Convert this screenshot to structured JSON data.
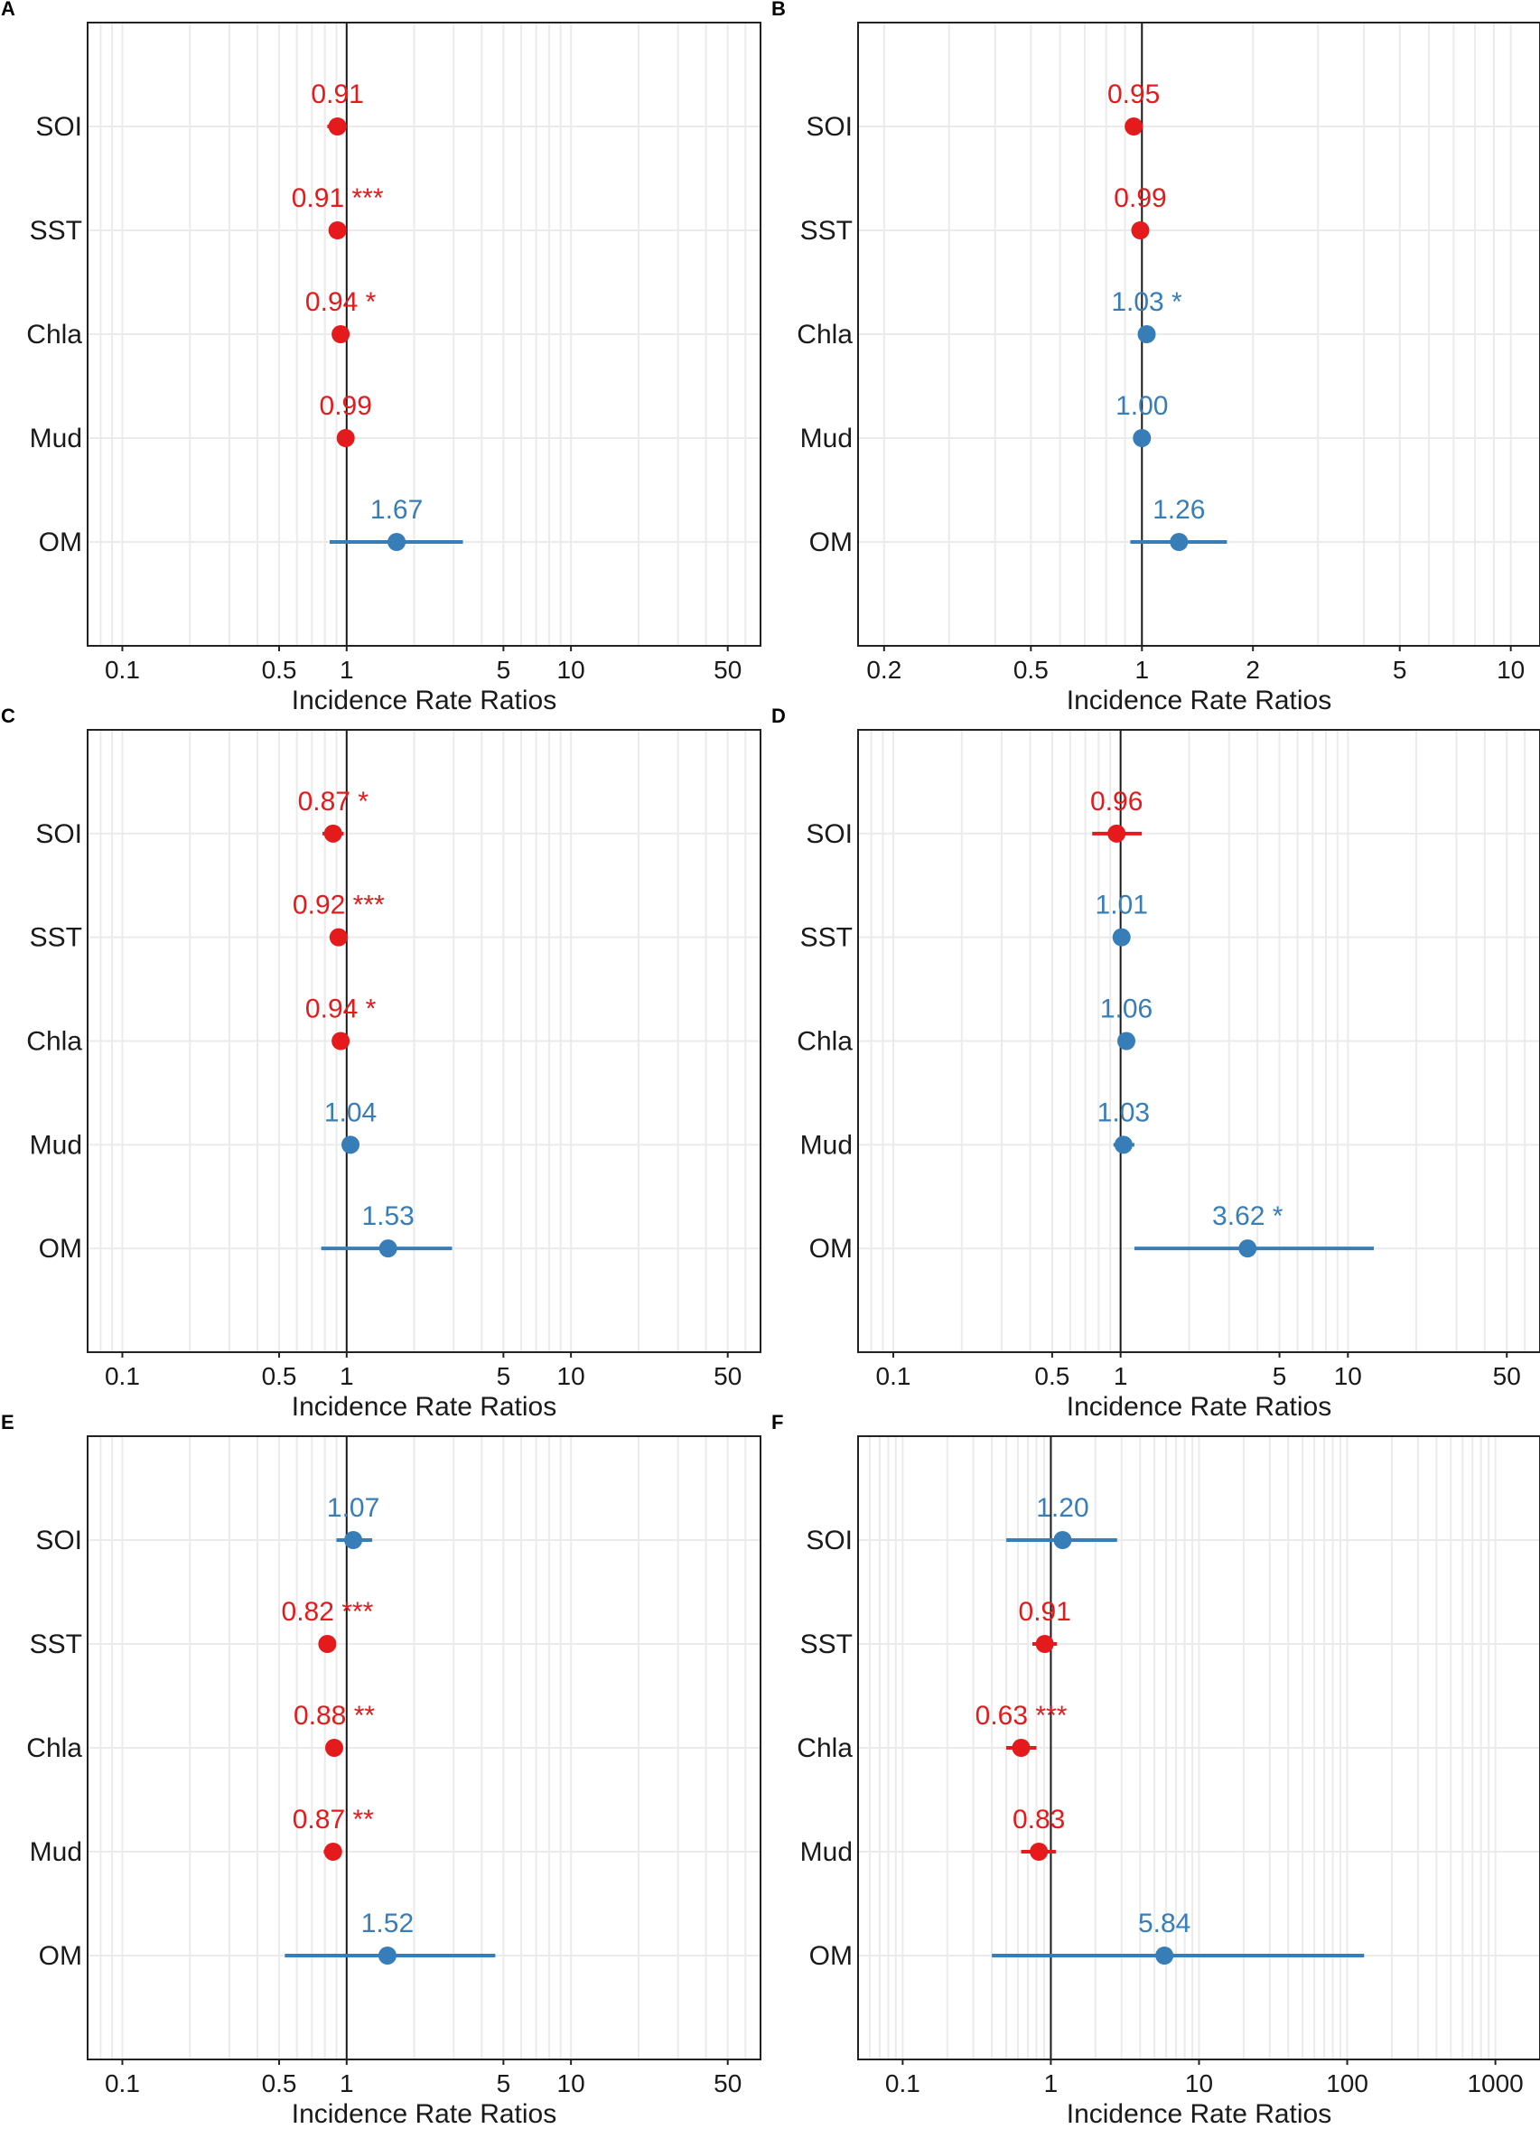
{
  "colors": {
    "negative": "#e41a1c",
    "positive": "#377eb8",
    "axis": "#222222",
    "grid": "#ebebeb",
    "refline": "#1a1a1a",
    "text": "#1a1a1a"
  },
  "chart_data": [
    {
      "type": "forest",
      "panel": "A",
      "xlabel": "Incidence Rate Ratios",
      "xscale": "log",
      "xlim": [
        0.07,
        70
      ],
      "xticks": [
        0.1,
        0.5,
        1,
        5,
        10,
        50
      ],
      "xtick_labels": [
        "0.1",
        "0.5",
        "1",
        "5",
        "10",
        "50"
      ],
      "reference": 1,
      "rows": [
        {
          "term": "SOI",
          "estimate": 0.91,
          "ci_low": 0.82,
          "ci_high": 1.0,
          "label": "0.91",
          "color": "negative"
        },
        {
          "term": "SST",
          "estimate": 0.91,
          "ci_low": 0.88,
          "ci_high": 0.94,
          "label": "0.91 ***",
          "color": "negative"
        },
        {
          "term": "Chla",
          "estimate": 0.94,
          "ci_low": 0.9,
          "ci_high": 0.99,
          "label": "0.94 *",
          "color": "negative"
        },
        {
          "term": "Mud",
          "estimate": 0.99,
          "ci_low": 0.96,
          "ci_high": 1.02,
          "label": "0.99",
          "color": "negative"
        },
        {
          "term": "OM",
          "estimate": 1.67,
          "ci_low": 0.84,
          "ci_high": 3.3,
          "label": "1.67",
          "color": "positive"
        }
      ]
    },
    {
      "type": "forest",
      "panel": "B",
      "xlabel": "Incidence Rate Ratios",
      "xscale": "log",
      "xlim": [
        0.17,
        12
      ],
      "xticks": [
        0.2,
        0.5,
        1,
        2,
        5,
        10
      ],
      "xtick_labels": [
        "0.2",
        "0.5",
        "1",
        "2",
        "5",
        "10"
      ],
      "reference": 1,
      "rows": [
        {
          "term": "SOI",
          "estimate": 0.95,
          "ci_low": 0.9,
          "ci_high": 1.0,
          "label": "0.95",
          "color": "negative"
        },
        {
          "term": "SST",
          "estimate": 0.99,
          "ci_low": 0.97,
          "ci_high": 1.01,
          "label": "0.99",
          "color": "negative"
        },
        {
          "term": "Chla",
          "estimate": 1.03,
          "ci_low": 1.0,
          "ci_high": 1.06,
          "label": "1.03 *",
          "color": "positive"
        },
        {
          "term": "Mud",
          "estimate": 1.0,
          "ci_low": 0.98,
          "ci_high": 1.02,
          "label": "1.00",
          "color": "positive"
        },
        {
          "term": "OM",
          "estimate": 1.26,
          "ci_low": 0.93,
          "ci_high": 1.7,
          "label": "1.26",
          "color": "positive"
        }
      ]
    },
    {
      "type": "forest",
      "panel": "C",
      "xlabel": "Incidence Rate Ratios",
      "xscale": "log",
      "xlim": [
        0.07,
        70
      ],
      "xticks": [
        0.1,
        0.5,
        1,
        5,
        10,
        50
      ],
      "xtick_labels": [
        "0.1",
        "0.5",
        "1",
        "5",
        "10",
        "50"
      ],
      "reference": 1,
      "rows": [
        {
          "term": "SOI",
          "estimate": 0.87,
          "ci_low": 0.78,
          "ci_high": 0.97,
          "label": "0.87 *",
          "color": "negative"
        },
        {
          "term": "SST",
          "estimate": 0.92,
          "ci_low": 0.89,
          "ci_high": 0.95,
          "label": "0.92 ***",
          "color": "negative"
        },
        {
          "term": "Chla",
          "estimate": 0.94,
          "ci_low": 0.9,
          "ci_high": 0.99,
          "label": "0.94 *",
          "color": "negative"
        },
        {
          "term": "Mud",
          "estimate": 1.04,
          "ci_low": 1.0,
          "ci_high": 1.08,
          "label": "1.04",
          "color": "positive"
        },
        {
          "term": "OM",
          "estimate": 1.53,
          "ci_low": 0.77,
          "ci_high": 2.95,
          "label": "1.53",
          "color": "positive"
        }
      ]
    },
    {
      "type": "forest",
      "panel": "D",
      "xlabel": "Incidence Rate Ratios",
      "xscale": "log",
      "xlim": [
        0.07,
        70
      ],
      "xticks": [
        0.1,
        0.5,
        1,
        5,
        10,
        50
      ],
      "xtick_labels": [
        "0.1",
        "0.5",
        "1",
        "5",
        "10",
        "50"
      ],
      "reference": 1,
      "rows": [
        {
          "term": "SOI",
          "estimate": 0.96,
          "ci_low": 0.75,
          "ci_high": 1.24,
          "label": "0.96",
          "color": "negative"
        },
        {
          "term": "SST",
          "estimate": 1.01,
          "ci_low": 0.98,
          "ci_high": 1.04,
          "label": "1.01",
          "color": "positive"
        },
        {
          "term": "Chla",
          "estimate": 1.06,
          "ci_low": 1.0,
          "ci_high": 1.12,
          "label": "1.06",
          "color": "positive"
        },
        {
          "term": "Mud",
          "estimate": 1.03,
          "ci_low": 0.93,
          "ci_high": 1.15,
          "label": "1.03",
          "color": "positive"
        },
        {
          "term": "OM",
          "estimate": 3.62,
          "ci_low": 1.15,
          "ci_high": 13.0,
          "label": "3.62 *",
          "color": "positive"
        }
      ]
    },
    {
      "type": "forest",
      "panel": "E",
      "xlabel": "Incidence Rate Ratios",
      "xscale": "log",
      "xlim": [
        0.07,
        70
      ],
      "xticks": [
        0.1,
        0.5,
        1,
        5,
        10,
        50
      ],
      "xtick_labels": [
        "0.1",
        "0.5",
        "1",
        "5",
        "10",
        "50"
      ],
      "reference": 1,
      "rows": [
        {
          "term": "SOI",
          "estimate": 1.07,
          "ci_low": 0.9,
          "ci_high": 1.3,
          "label": "1.07",
          "color": "positive"
        },
        {
          "term": "SST",
          "estimate": 0.82,
          "ci_low": 0.79,
          "ci_high": 0.85,
          "label": "0.82 ***",
          "color": "negative"
        },
        {
          "term": "Chla",
          "estimate": 0.88,
          "ci_low": 0.84,
          "ci_high": 0.93,
          "label": "0.88 **",
          "color": "negative"
        },
        {
          "term": "Mud",
          "estimate": 0.87,
          "ci_low": 0.79,
          "ci_high": 0.95,
          "label": "0.87 **",
          "color": "negative"
        },
        {
          "term": "OM",
          "estimate": 1.52,
          "ci_low": 0.53,
          "ci_high": 4.6,
          "label": "1.52",
          "color": "positive"
        }
      ]
    },
    {
      "type": "forest",
      "panel": "F",
      "xlabel": "Incidence Rate Ratios",
      "xscale": "log",
      "xlim": [
        0.05,
        2000
      ],
      "xticks": [
        0.1,
        1,
        10,
        100,
        1000
      ],
      "xtick_labels": [
        "0.1",
        "1",
        "10",
        "100",
        "1000"
      ],
      "reference": 1,
      "rows": [
        {
          "term": "SOI",
          "estimate": 1.2,
          "ci_low": 0.5,
          "ci_high": 2.8,
          "label": "1.20",
          "color": "positive"
        },
        {
          "term": "SST",
          "estimate": 0.91,
          "ci_low": 0.75,
          "ci_high": 1.1,
          "label": "0.91",
          "color": "negative"
        },
        {
          "term": "Chla",
          "estimate": 0.63,
          "ci_low": 0.5,
          "ci_high": 0.8,
          "label": "0.63 ***",
          "color": "negative"
        },
        {
          "term": "Mud",
          "estimate": 0.83,
          "ci_low": 0.63,
          "ci_high": 1.08,
          "label": "0.83",
          "color": "negative"
        },
        {
          "term": "OM",
          "estimate": 5.84,
          "ci_low": 0.4,
          "ci_high": 130,
          "label": "5.84",
          "color": "positive"
        }
      ]
    }
  ]
}
